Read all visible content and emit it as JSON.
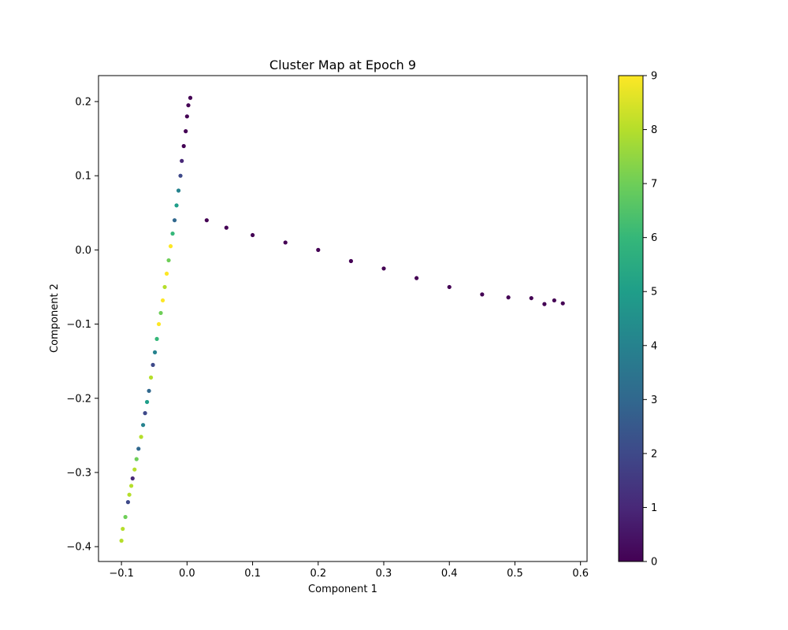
{
  "chart_data": {
    "type": "scatter",
    "title": "Cluster Map at Epoch 9",
    "xlabel": "Component 1",
    "ylabel": "Component 2",
    "xlim": [
      -0.135,
      0.61
    ],
    "ylim": [
      -0.42,
      0.235
    ],
    "xticks": [
      -0.1,
      0.0,
      0.1,
      0.2,
      0.3,
      0.4,
      0.5,
      0.6
    ],
    "xtick_labels": [
      "−0.1",
      "0.0",
      "0.1",
      "0.2",
      "0.3",
      "0.4",
      "0.5",
      "0.6"
    ],
    "yticks": [
      -0.4,
      -0.3,
      -0.2,
      -0.1,
      0.0,
      0.1,
      0.2
    ],
    "ytick_labels": [
      "−0.4",
      "−0.3",
      "−0.2",
      "−0.1",
      "0.0",
      "0.1",
      "0.2"
    ],
    "grid": false,
    "colormap": "viridis",
    "colorbar": {
      "range": [
        0,
        9
      ],
      "ticks": [
        0,
        1,
        2,
        3,
        4,
        5,
        6,
        7,
        8,
        9
      ],
      "tick_labels": [
        "0",
        "1",
        "2",
        "3",
        "4",
        "5",
        "6",
        "7",
        "8",
        "9"
      ],
      "stops": [
        "#440154",
        "#482878",
        "#3e4989",
        "#31688e",
        "#26828e",
        "#1f9e89",
        "#35b779",
        "#6ece58",
        "#b5de2b",
        "#fde725"
      ]
    },
    "points": [
      {
        "x": -0.1,
        "y": -0.392,
        "c": 8
      },
      {
        "x": -0.098,
        "y": -0.376,
        "c": 8
      },
      {
        "x": -0.094,
        "y": -0.36,
        "c": 7
      },
      {
        "x": -0.09,
        "y": -0.34,
        "c": 2
      },
      {
        "x": -0.088,
        "y": -0.33,
        "c": 8
      },
      {
        "x": -0.085,
        "y": -0.318,
        "c": 8
      },
      {
        "x": -0.083,
        "y": -0.308,
        "c": 1
      },
      {
        "x": -0.08,
        "y": -0.296,
        "c": 8
      },
      {
        "x": -0.077,
        "y": -0.282,
        "c": 7
      },
      {
        "x": -0.074,
        "y": -0.268,
        "c": 3
      },
      {
        "x": -0.07,
        "y": -0.252,
        "c": 8
      },
      {
        "x": -0.067,
        "y": -0.236,
        "c": 4
      },
      {
        "x": -0.064,
        "y": -0.22,
        "c": 2
      },
      {
        "x": -0.061,
        "y": -0.205,
        "c": 5
      },
      {
        "x": -0.058,
        "y": -0.19,
        "c": 3
      },
      {
        "x": -0.055,
        "y": -0.172,
        "c": 8
      },
      {
        "x": -0.052,
        "y": -0.155,
        "c": 2
      },
      {
        "x": -0.049,
        "y": -0.138,
        "c": 4
      },
      {
        "x": -0.046,
        "y": -0.12,
        "c": 6
      },
      {
        "x": -0.043,
        "y": -0.1,
        "c": 9
      },
      {
        "x": -0.04,
        "y": -0.085,
        "c": 7
      },
      {
        "x": -0.037,
        "y": -0.068,
        "c": 9
      },
      {
        "x": -0.034,
        "y": -0.05,
        "c": 8
      },
      {
        "x": -0.031,
        "y": -0.032,
        "c": 9
      },
      {
        "x": -0.028,
        "y": -0.014,
        "c": 7
      },
      {
        "x": -0.025,
        "y": 0.005,
        "c": 9
      },
      {
        "x": -0.022,
        "y": 0.022,
        "c": 6
      },
      {
        "x": -0.019,
        "y": 0.04,
        "c": 3
      },
      {
        "x": -0.016,
        "y": 0.06,
        "c": 5
      },
      {
        "x": -0.013,
        "y": 0.08,
        "c": 4
      },
      {
        "x": -0.01,
        "y": 0.1,
        "c": 2
      },
      {
        "x": -0.008,
        "y": 0.12,
        "c": 1
      },
      {
        "x": -0.005,
        "y": 0.14,
        "c": 0
      },
      {
        "x": -0.002,
        "y": 0.16,
        "c": 0
      },
      {
        "x": 0.0,
        "y": 0.18,
        "c": 0
      },
      {
        "x": 0.002,
        "y": 0.195,
        "c": 0
      },
      {
        "x": 0.005,
        "y": 0.205,
        "c": 0
      },
      {
        "x": 0.03,
        "y": 0.04,
        "c": 0
      },
      {
        "x": 0.06,
        "y": 0.03,
        "c": 0
      },
      {
        "x": 0.1,
        "y": 0.02,
        "c": 0
      },
      {
        "x": 0.15,
        "y": 0.01,
        "c": 0
      },
      {
        "x": 0.2,
        "y": 0.0,
        "c": 0
      },
      {
        "x": 0.25,
        "y": -0.015,
        "c": 0
      },
      {
        "x": 0.3,
        "y": -0.025,
        "c": 0
      },
      {
        "x": 0.35,
        "y": -0.038,
        "c": 0
      },
      {
        "x": 0.4,
        "y": -0.05,
        "c": 0
      },
      {
        "x": 0.45,
        "y": -0.06,
        "c": 0
      },
      {
        "x": 0.49,
        "y": -0.064,
        "c": 0
      },
      {
        "x": 0.525,
        "y": -0.065,
        "c": 0
      },
      {
        "x": 0.545,
        "y": -0.073,
        "c": 0
      },
      {
        "x": 0.56,
        "y": -0.068,
        "c": 0
      },
      {
        "x": 0.573,
        "y": -0.072,
        "c": 0
      }
    ]
  }
}
